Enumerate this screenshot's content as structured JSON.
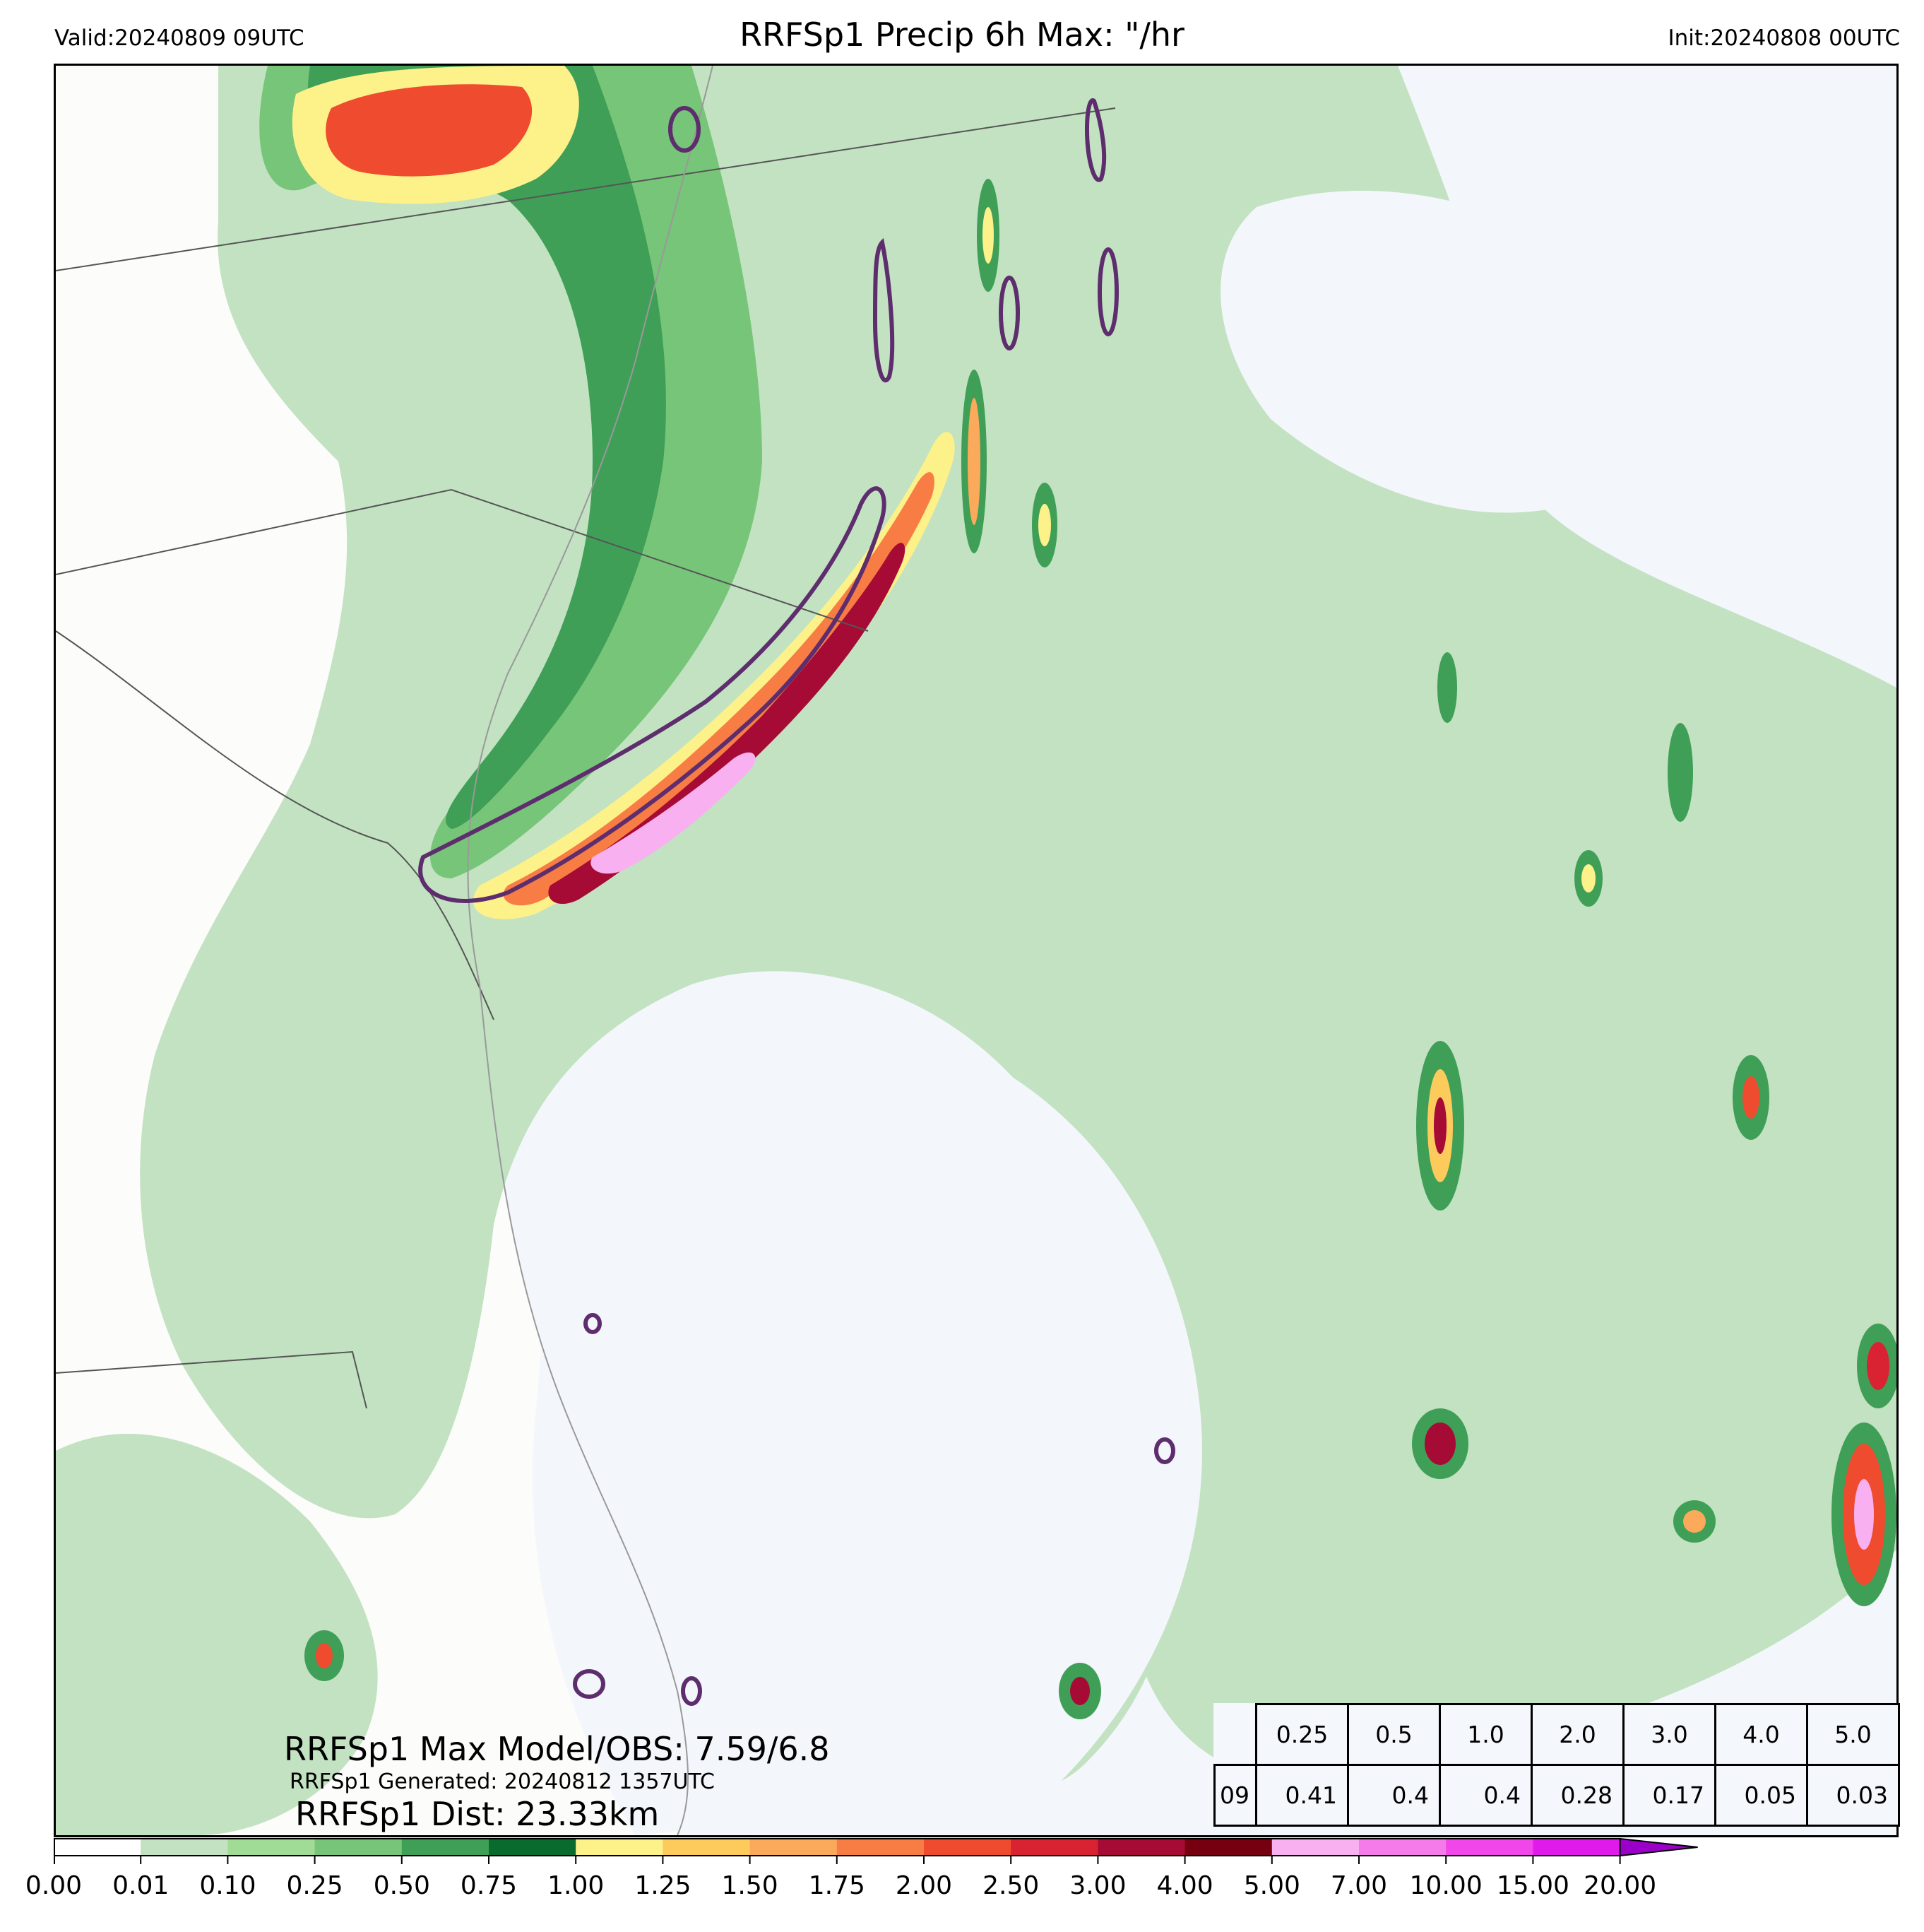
{
  "header": {
    "valid": "Valid:20240809 09UTC",
    "title": "RRFSp1 Precip 6h Max: \"/hr",
    "init": "Init:20240808 00UTC"
  },
  "stats": {
    "max_line": "RRFSp1 Max Model/OBS: 7.59/6.8",
    "generated_line": "RRFSp1 Generated: 20240812 1357UTC",
    "dist_line": "RRFSp1 Dist: 23.33km"
  },
  "table": {
    "thresholds": [
      "0.25",
      "0.5",
      "1.0",
      "2.0",
      "3.0",
      "4.0",
      "5.0"
    ],
    "row_label": "09",
    "values": [
      "0.41",
      "0.4",
      "0.4",
      "0.28",
      "0.17",
      "0.05",
      "0.03"
    ]
  },
  "colorbar": {
    "ticks": [
      "0.00",
      "0.01",
      "0.10",
      "0.25",
      "0.50",
      "0.75",
      "1.00",
      "1.25",
      "1.50",
      "1.75",
      "2.00",
      "2.50",
      "3.00",
      "4.00",
      "5.00",
      "7.00",
      "10.00",
      "15.00",
      "20.00"
    ],
    "colors": [
      "#ffffff",
      "#c2e2c2",
      "#a1dc96",
      "#77c578",
      "#3f9f57",
      "#0a6b2e",
      "#fdf18a",
      "#fccb5c",
      "#fba95a",
      "#f87d45",
      "#ef4b2f",
      "#d92332",
      "#a60b35",
      "#770010",
      "#f9b0f0",
      "#f57bea",
      "#f046ea",
      "#e01aeb",
      "#9b00c9"
    ]
  },
  "map_colors": {
    "land": "#fcfcfa",
    "ocean": "#f3f6fb",
    "obs_contour": "#5e2d6e",
    "boundary": "#555555"
  }
}
